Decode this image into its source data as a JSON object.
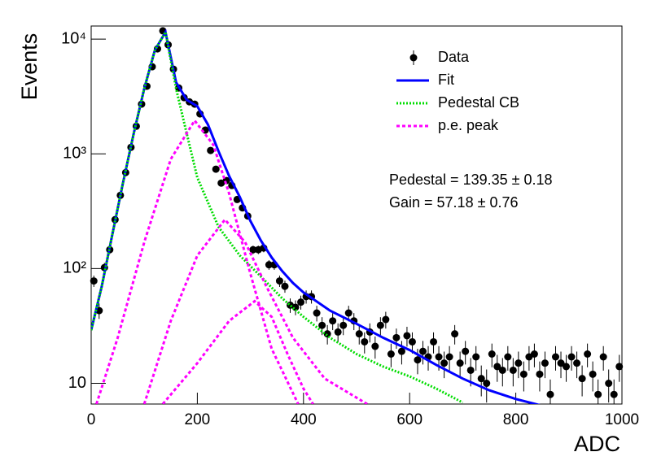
{
  "chart_data": {
    "type": "scatter",
    "xlabel": "ADC",
    "ylabel": "Events",
    "xlim": [
      0,
      1000
    ],
    "xticks": [
      0,
      200,
      400,
      600,
      800,
      1000
    ],
    "ylim": [
      6.6,
      13000
    ],
    "yscale": "log",
    "yticks": [
      10,
      {
        "value": 100,
        "label": "10²"
      },
      {
        "value": 1000,
        "label": "10³"
      },
      {
        "value": 10000,
        "label": "10⁴"
      }
    ],
    "legend": "upper right",
    "annotations": [
      "Pedestal = 139.35 ± 0.18",
      "Gain = 57.18 ± 0.76"
    ],
    "series": [
      {
        "name": "Data",
        "color": "#000000",
        "x": [
          5,
          15,
          25,
          35,
          45,
          55,
          65,
          75,
          85,
          95,
          105,
          115,
          125,
          135,
          145,
          155,
          165,
          175,
          185,
          195,
          205,
          215,
          225,
          235,
          245,
          255,
          265,
          275,
          285,
          295,
          305,
          315,
          325,
          335,
          345,
          355,
          365,
          375,
          385,
          395,
          405,
          415,
          425,
          435,
          445,
          455,
          465,
          475,
          485,
          495,
          505,
          515,
          525,
          535,
          545,
          555,
          565,
          575,
          585,
          595,
          605,
          615,
          625,
          635,
          645,
          655,
          665,
          675,
          685,
          695,
          705,
          715,
          725,
          735,
          745,
          755,
          765,
          775,
          785,
          795,
          805,
          815,
          825,
          835,
          845,
          855,
          865,
          875,
          885,
          895,
          905,
          915,
          925,
          935,
          945,
          955,
          965,
          975,
          985,
          995
        ],
        "values": [
          78,
          43,
          102,
          146,
          267,
          435,
          687,
          1140,
          1740,
          2710,
          3880,
          5740,
          8220,
          11800,
          8920,
          5470,
          3750,
          3090,
          2840,
          2710,
          2230,
          1610,
          1070,
          735,
          556,
          585,
          530,
          400,
          338,
          287,
          146,
          146,
          151,
          108,
          108,
          78,
          70,
          48,
          46,
          51,
          57,
          57,
          41,
          32,
          27,
          35,
          28,
          32,
          41,
          35,
          27,
          23,
          28,
          21,
          32,
          36,
          18,
          25,
          19,
          26,
          23,
          16,
          19,
          17,
          23,
          17,
          15,
          17,
          27,
          15,
          19,
          13,
          17,
          11,
          10,
          18,
          14,
          13,
          17,
          13,
          15,
          12,
          17,
          18,
          12,
          15,
          8,
          17,
          15,
          14,
          17,
          15,
          11,
          18,
          12,
          8,
          17,
          10,
          8,
          14
        ],
        "errors": [
          8.8,
          6.6,
          10.1,
          12.1,
          16.3,
          20.9,
          26.2,
          33.8,
          41.7,
          52.1,
          62.3,
          75.8,
          90.7,
          108.6,
          94.4,
          74,
          61.2,
          55.6,
          53.3,
          52.1,
          47.2,
          40.1,
          32.7,
          27.1,
          23.6,
          24.2,
          23,
          20,
          18.4,
          16.9,
          12.1,
          12.1,
          12.3,
          10.4,
          10.4,
          8.8,
          8.4,
          6.9,
          6.8,
          7.1,
          7.5,
          7.5,
          6.4,
          5.7,
          5.2,
          5.9,
          5.3,
          5.7,
          6.4,
          5.9,
          5.2,
          4.8,
          5.3,
          4.6,
          5.7,
          6,
          4.2,
          5,
          4.4,
          5.1,
          4.8,
          4,
          4.4,
          4.1,
          4.8,
          4.1,
          3.9,
          4.1,
          5.2,
          3.9,
          4.4,
          3.6,
          4.1,
          3.3,
          3.2,
          4.2,
          3.7,
          3.6,
          4.1,
          3.6,
          3.9,
          3.5,
          4.1,
          4.2,
          3.5,
          3.9,
          2.8,
          4.1,
          3.9,
          3.7,
          4.1,
          3.9,
          3.3,
          4.2,
          3.5,
          2.8,
          4.1,
          3.2,
          2.8,
          3.7
        ]
      },
      {
        "name": "Fit",
        "color": "#0000ff",
        "x": [
          0,
          20,
          40,
          60,
          80,
          100,
          120,
          140,
          160,
          180,
          200,
          220,
          240,
          260,
          280,
          300,
          320,
          340,
          360,
          380,
          400,
          450,
          500,
          550,
          600,
          650,
          700,
          750,
          800,
          860
        ],
        "values": [
          29,
          70,
          200,
          560,
          1500,
          3700,
          8000,
          11500,
          4200,
          2950,
          2600,
          1800,
          1050,
          640,
          420,
          260,
          175,
          125,
          95,
          75,
          62,
          43,
          33,
          25,
          19.5,
          14.5,
          11,
          8.7,
          7.3,
          6.2
        ]
      },
      {
        "name": "Pedestal CB",
        "color": "#00dd00",
        "x": [
          0,
          20,
          40,
          60,
          80,
          100,
          120,
          140,
          160,
          180,
          200,
          240,
          280,
          320,
          360,
          400,
          450,
          500,
          550,
          600,
          650,
          700
        ],
        "values": [
          29,
          70,
          200,
          560,
          1500,
          3700,
          8000,
          11500,
          3700,
          1500,
          620,
          230,
          130,
          85,
          55,
          38,
          25,
          18,
          14,
          11.5,
          9,
          6.8
        ]
      },
      {
        "name": "p.e. peak",
        "color": "#ff00ff",
        "components": [
          {
            "x": [
              10,
              50,
              100,
              150,
              195,
              230,
              260,
              300,
              340,
              390
            ],
            "values": [
              6.6,
              25,
              170,
              900,
              1950,
              1200,
              450,
              90,
              20,
              6.6
            ]
          },
          {
            "x": [
              100,
              150,
              200,
              252,
              290,
              330,
              380,
              440,
              520
            ],
            "values": [
              6.6,
              35,
              130,
              267,
              170,
              70,
              25,
              11,
              6.6
            ]
          },
          {
            "x": [
              135,
              200,
              260,
              308,
              340,
              370,
              400,
              418
            ],
            "values": [
              6.6,
              15,
              35,
              52,
              38,
              18,
              9,
              6.6
            ]
          }
        ]
      }
    ]
  }
}
